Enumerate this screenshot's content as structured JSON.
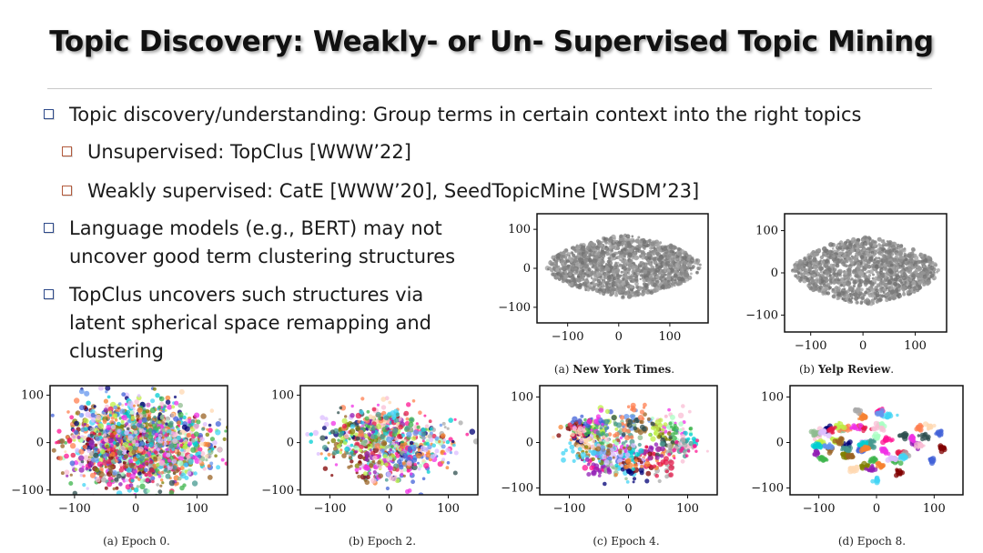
{
  "slide": {
    "title": "Topic Discovery: Weakly- or Un- Supervised Topic Mining",
    "bullets": {
      "b1": "Topic discovery/understanding: Group terms in certain context into the right topics",
      "b1a": "Unsupervised:  TopClus [WWW’22]",
      "b1b": "Weakly supervised: CatE [WWW’20],  SeedTopicMine [WSDM’23]",
      "b2_line1": "Language models (e.g., BERT) may not",
      "b2_line2": "uncover good term clustering structures",
      "b3_line1": "TopClus uncovers such structures via",
      "b3_line2": "latent spherical space remapping and",
      "b3_line3": "clustering"
    },
    "colors": {
      "bullet_main": "#2e4a8a",
      "bullet_sub": "#b25a3c",
      "scatter_gray": "#8a8a8a"
    }
  },
  "chart_data": [
    {
      "type": "scatter",
      "caption_prefix": "(a) ",
      "caption_bold": "New York Times",
      "caption_suffix": ".",
      "xlim": [
        -160,
        175
      ],
      "ylim": [
        -140,
        140
      ],
      "xticks": [
        -100,
        0,
        100
      ],
      "yticks": [
        100,
        0,
        -100
      ],
      "xtick_labels": [
        "−100",
        "0",
        "100"
      ],
      "ytick_labels": [
        "100",
        "0",
        "−100"
      ],
      "series": [
        {
          "values_description": "",
          "color": "#8a8a8a"
        }
      ],
      "blob": {
        "cx": 10,
        "cy": 5,
        "rx": 150,
        "ry": 80
      }
    },
    {
      "type": "scatter",
      "caption_prefix": "(b) ",
      "caption_bold": "Yelp Review",
      "caption_suffix": ".",
      "xlim": [
        -150,
        160
      ],
      "ylim": [
        -140,
        140
      ],
      "xticks": [
        -100,
        0,
        100
      ],
      "yticks": [
        100,
        0,
        -100
      ],
      "xtick_labels": [
        "−100",
        "0",
        "100"
      ],
      "ytick_labels": [
        "100",
        "0",
        "−100"
      ],
      "series": [
        {
          "values_description": "",
          "color": "#8a8a8a"
        }
      ],
      "blob": {
        "cx": 5,
        "cy": 5,
        "rx": 140,
        "ry": 80
      }
    },
    {
      "type": "scatter",
      "caption_prefix": "(a) ",
      "caption_bold": "",
      "caption_suffix": "Epoch 0.",
      "xlim": [
        -140,
        150
      ],
      "ylim": [
        -110,
        120
      ],
      "xticks": [
        -100,
        0,
        100
      ],
      "yticks": [
        100,
        0,
        -100
      ],
      "xtick_labels": [
        "−100",
        "0",
        "100"
      ],
      "ytick_labels": [
        "100",
        "0",
        "−100"
      ],
      "separation": 0.0
    },
    {
      "type": "scatter",
      "caption_prefix": "(b) ",
      "caption_bold": "",
      "caption_suffix": "Epoch 2.",
      "xlim": [
        -150,
        150
      ],
      "ylim": [
        -110,
        120
      ],
      "xticks": [
        -100,
        0,
        100
      ],
      "yticks": [
        100,
        0,
        -100
      ],
      "xtick_labels": [
        "−100",
        "0",
        "100"
      ],
      "ytick_labels": [
        "100",
        "0",
        "−100"
      ],
      "separation": 0.45
    },
    {
      "type": "scatter",
      "caption_prefix": "(c) ",
      "caption_bold": "",
      "caption_suffix": "Epoch 4.",
      "xlim": [
        -150,
        150
      ],
      "ylim": [
        -115,
        125
      ],
      "xticks": [
        -100,
        0,
        100
      ],
      "yticks": [
        100,
        0,
        -100
      ],
      "xtick_labels": [
        "−100",
        "0",
        "100"
      ],
      "ytick_labels": [
        "100",
        "0",
        "−100"
      ],
      "separation": 0.75
    },
    {
      "type": "scatter",
      "caption_prefix": "(d) ",
      "caption_bold": "",
      "caption_suffix": "Epoch 8.",
      "xlim": [
        -150,
        150
      ],
      "ylim": [
        -115,
        125
      ],
      "xticks": [
        -100,
        0,
        100
      ],
      "yticks": [
        100,
        0,
        -100
      ],
      "xtick_labels": [
        "−100",
        "0",
        "100"
      ],
      "ytick_labels": [
        "100",
        "0",
        "−100"
      ],
      "separation": 1.0
    }
  ]
}
